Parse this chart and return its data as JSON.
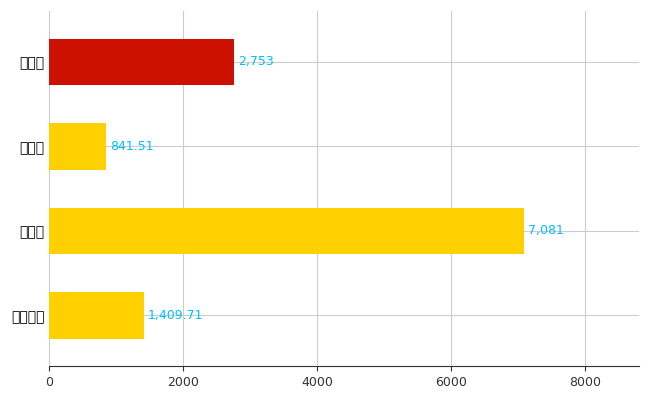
{
  "categories": [
    "浦添市",
    "県平均",
    "県最大",
    "全国平均"
  ],
  "values": [
    2753,
    841.51,
    7081,
    1409.71
  ],
  "bar_colors": [
    "#CC1100",
    "#FFD000",
    "#FFD000",
    "#FFD000"
  ],
  "value_labels": [
    "2,753",
    "841.51",
    "7,081",
    "1,409.71"
  ],
  "label_color": "#00BFFF",
  "xlim": [
    0,
    8800
  ],
  "xticks": [
    0,
    2000,
    4000,
    6000,
    8000
  ],
  "background_color": "#FFFFFF",
  "grid_color": "#CCCCCC",
  "bar_height": 0.55,
  "figsize": [
    6.5,
    4.0
  ],
  "dpi": 100,
  "ytick_fontsize": 10,
  "xtick_fontsize": 9,
  "label_fontsize": 9
}
